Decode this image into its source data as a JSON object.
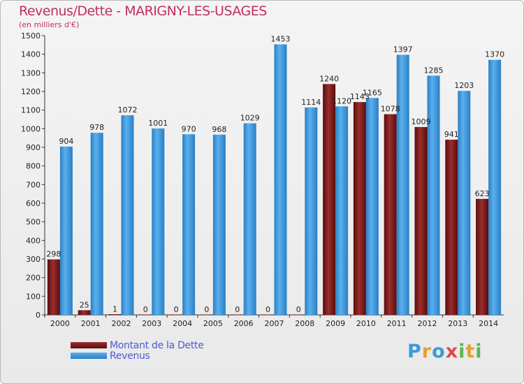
{
  "header": {
    "title": "Revenus/Dette - MARIGNY-LES-USAGES",
    "subtitle": "(en milliers d'€)"
  },
  "logo": {
    "text": "Proxiti"
  },
  "colors": {
    "dette": "#7a1a1a",
    "revenus": "#3a97dc",
    "title": "#c0305a",
    "legend_text": "#4a5ad8"
  },
  "chart_data": {
    "type": "bar",
    "title": "Revenus/Dette - MARIGNY-LES-USAGES",
    "subtitle": "(en milliers d'€)",
    "xlabel": "",
    "ylabel": "",
    "ylim": [
      0,
      1500
    ],
    "yticks": [
      0,
      100,
      200,
      300,
      400,
      500,
      600,
      700,
      800,
      900,
      1000,
      1100,
      1200,
      1300,
      1400,
      1500
    ],
    "grid": false,
    "legend_position": "bottom-left",
    "categories": [
      "2000",
      "2001",
      "2002",
      "2003",
      "2004",
      "2005",
      "2006",
      "2007",
      "2008",
      "2009",
      "2010",
      "2011",
      "2012",
      "2013",
      "2014"
    ],
    "series": [
      {
        "name": "Montant de la Dette",
        "color": "#7a1a1a",
        "values": [
          298,
          25,
          1,
          0,
          0,
          0,
          0,
          0,
          0,
          1240,
          1143,
          1078,
          1009,
          941,
          623
        ],
        "labels": [
          "298",
          "25",
          "1",
          "0",
          "0",
          "0",
          "0",
          "0",
          "0",
          "1240",
          "1143",
          "1078",
          "1009",
          "941",
          "623"
        ]
      },
      {
        "name": "Revenus",
        "color": "#3a97dc",
        "values": [
          904,
          978,
          1072,
          1001,
          970,
          968,
          1029,
          1453,
          1114,
          1120,
          1165,
          1397,
          1285,
          1203,
          1370
        ],
        "labels": [
          "904",
          "978",
          "1072",
          "1001",
          "970",
          "968",
          "1029",
          "1453",
          "1114",
          "1120",
          "1165",
          "1397",
          "1285",
          "1203",
          "1370"
        ]
      }
    ]
  }
}
